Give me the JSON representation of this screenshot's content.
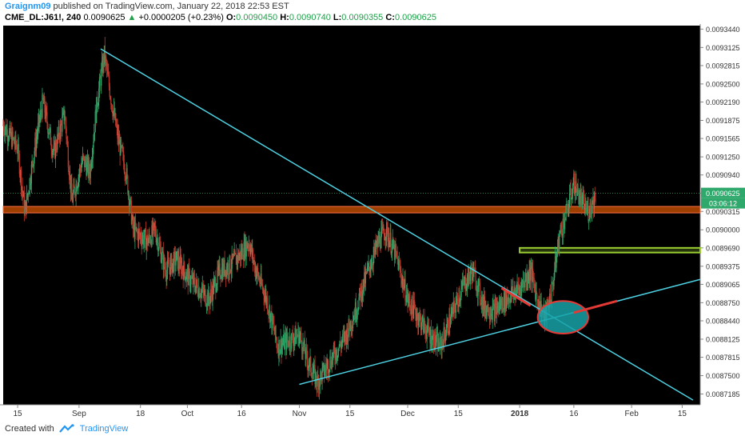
{
  "header": {
    "author": "Graignm09",
    "published_text": "published on TradingView.com, January 22, 2018 22:53 EST",
    "symbol": "CME_DL:J61!, 240",
    "last": "0.0090625",
    "change": "+0.0000205 (+0.23%)",
    "o_label": "O:",
    "o_value": "0.0090450",
    "h_label": "H:",
    "h_value": "0.0090740",
    "l_label": "L:",
    "l_value": "0.0090355",
    "c_label": "C:",
    "c_value": "0.0090625"
  },
  "footer": {
    "created_with": "Created with",
    "brand": "TradingView"
  },
  "colors": {
    "background": "#000000",
    "bull": "#2ea86b",
    "bear": "#c0392b",
    "trendline": "#4dd0e1",
    "resistance_zone": "#d35400",
    "support_zone": "#9acd32",
    "ellipse_fill": "#17a2a8",
    "ellipse_stroke": "#e53935",
    "highlight_red": "#e53935",
    "last_price_badge": "#2ea86b"
  },
  "chart_data": {
    "type": "candlestick",
    "symbol": "CME_DL:J61!",
    "interval": "240",
    "last_price": 0.0090625,
    "last_price_label": "0.0090625",
    "countdown_label": "03:06:12",
    "ylim": [
      0.0087,
      0.00935
    ],
    "y_ticks": [
      0.009344,
      0.0093125,
      0.0092815,
      0.00925,
      0.009219,
      0.0091875,
      0.0091565,
      0.009125,
      0.009094,
      0.0090625,
      0.0090315,
      0.009,
      0.008969,
      0.0089375,
      0.0089065,
      0.008875,
      0.008844,
      0.0088125,
      0.0087815,
      0.00875,
      0.0087185
    ],
    "y_tick_labels": [
      "0.0093440",
      "0.0093125",
      "0.0092815",
      "0.0092500",
      "0.0092190",
      "0.0091875",
      "0.0091565",
      "0.0091250",
      "0.0090940",
      "0.0090625",
      "0.0090315",
      "0.0090000",
      "0.0089690",
      "0.0089375",
      "0.0089065",
      "0.0088750",
      "0.0088440",
      "0.0088125",
      "0.0087815",
      "0.0087500",
      "0.0087185"
    ],
    "x_range": [
      "2017-08-11",
      "2018-02-20"
    ],
    "x_ticks": [
      {
        "date": "2017-08-15",
        "label": "15"
      },
      {
        "date": "2017-09-01",
        "label": "Sep"
      },
      {
        "date": "2017-09-18",
        "label": "18"
      },
      {
        "date": "2017-10-01",
        "label": "Oct"
      },
      {
        "date": "2017-10-16",
        "label": "16"
      },
      {
        "date": "2017-11-01",
        "label": "Nov"
      },
      {
        "date": "2017-11-15",
        "label": "15"
      },
      {
        "date": "2017-12-01",
        "label": "Dec"
      },
      {
        "date": "2017-12-15",
        "label": "15"
      },
      {
        "date": "2018-01-01",
        "label": "2018"
      },
      {
        "date": "2018-01-16",
        "label": "16"
      },
      {
        "date": "2018-02-01",
        "label": "Feb"
      },
      {
        "date": "2018-02-15",
        "label": "15"
      }
    ],
    "price_path": [
      [
        "2017-08-11",
        0.00918
      ],
      [
        "2017-08-15",
        0.00914
      ],
      [
        "2017-08-17",
        0.00903
      ],
      [
        "2017-08-20",
        0.00915
      ],
      [
        "2017-08-22",
        0.00922
      ],
      [
        "2017-08-25",
        0.00913
      ],
      [
        "2017-08-28",
        0.0092
      ],
      [
        "2017-08-30",
        0.00905
      ],
      [
        "2017-09-02",
        0.00912
      ],
      [
        "2017-09-04",
        0.0091
      ],
      [
        "2017-09-06",
        0.00922
      ],
      [
        "2017-09-08",
        0.0093
      ],
      [
        "2017-09-10",
        0.00922
      ],
      [
        "2017-09-12",
        0.00915
      ],
      [
        "2017-09-14",
        0.0091
      ],
      [
        "2017-09-16",
        0.009
      ],
      [
        "2017-09-18",
        0.00899
      ],
      [
        "2017-09-20",
        0.00898
      ],
      [
        "2017-09-22",
        0.009
      ],
      [
        "2017-09-25",
        0.00893
      ],
      [
        "2017-09-28",
        0.00895
      ],
      [
        "2017-10-01",
        0.00892
      ],
      [
        "2017-10-04",
        0.0089
      ],
      [
        "2017-10-07",
        0.00888
      ],
      [
        "2017-10-10",
        0.00893
      ],
      [
        "2017-10-13",
        0.00894
      ],
      [
        "2017-10-16",
        0.00896
      ],
      [
        "2017-10-18",
        0.00898
      ],
      [
        "2017-10-20",
        0.00893
      ],
      [
        "2017-10-23",
        0.00888
      ],
      [
        "2017-10-26",
        0.0088
      ],
      [
        "2017-10-29",
        0.00881
      ],
      [
        "2017-11-01",
        0.00882
      ],
      [
        "2017-11-03",
        0.00878
      ],
      [
        "2017-11-06",
        0.00874
      ],
      [
        "2017-11-08",
        0.00876
      ],
      [
        "2017-11-11",
        0.00879
      ],
      [
        "2017-11-14",
        0.00882
      ],
      [
        "2017-11-17",
        0.00887
      ],
      [
        "2017-11-20",
        0.00893
      ],
      [
        "2017-11-23",
        0.00898
      ],
      [
        "2017-11-25",
        0.009
      ],
      [
        "2017-11-28",
        0.00895
      ],
      [
        "2017-12-01",
        0.00888
      ],
      [
        "2017-12-04",
        0.00885
      ],
      [
        "2017-12-07",
        0.00882
      ],
      [
        "2017-12-10",
        0.0088
      ],
      [
        "2017-12-13",
        0.00885
      ],
      [
        "2017-12-16",
        0.0089
      ],
      [
        "2017-12-19",
        0.00893
      ],
      [
        "2017-12-22",
        0.00887
      ],
      [
        "2017-12-25",
        0.00886
      ],
      [
        "2017-12-28",
        0.00888
      ],
      [
        "2018-01-01",
        0.0089
      ],
      [
        "2018-01-04",
        0.00893
      ],
      [
        "2018-01-06",
        0.00888
      ],
      [
        "2018-01-08",
        0.00885
      ],
      [
        "2018-01-10",
        0.0089
      ],
      [
        "2018-01-12",
        0.00899
      ],
      [
        "2018-01-14",
        0.00903
      ],
      [
        "2018-01-16",
        0.00908
      ],
      [
        "2018-01-18",
        0.00905
      ],
      [
        "2018-01-20",
        0.00903
      ],
      [
        "2018-01-22",
        0.00906
      ]
    ],
    "annotations": {
      "descending_trendline": {
        "from": [
          "2017-09-07",
          0.00931
        ],
        "to": [
          "2018-02-18",
          0.008708
        ]
      },
      "ascending_trendline": {
        "from": [
          "2017-11-01",
          0.008735
        ],
        "to": [
          "2018-02-20",
          0.008915
        ]
      },
      "resistance_zone": {
        "from_date": "2017-08-11",
        "to_date": "2018-02-20",
        "y_low": 0.009029,
        "y_high": 0.00904
      },
      "support_zone": {
        "from_date": "2018-01-01",
        "to_date": "2018-02-20",
        "y_low": 0.008961,
        "y_high": 0.008969
      },
      "breakout_ellipse": {
        "center": [
          "2018-01-13",
          0.00885
        ],
        "rx_days": 7,
        "ry_price": 2.8e-05
      },
      "red_segment_descending": {
        "from": [
          "2017-12-27",
          0.0089
        ],
        "to": [
          "2018-01-04",
          0.00887
        ]
      },
      "red_segment_ascending": {
        "from": [
          "2018-01-16",
          0.008858
        ],
        "to": [
          "2018-01-28",
          0.008878
        ]
      }
    }
  }
}
